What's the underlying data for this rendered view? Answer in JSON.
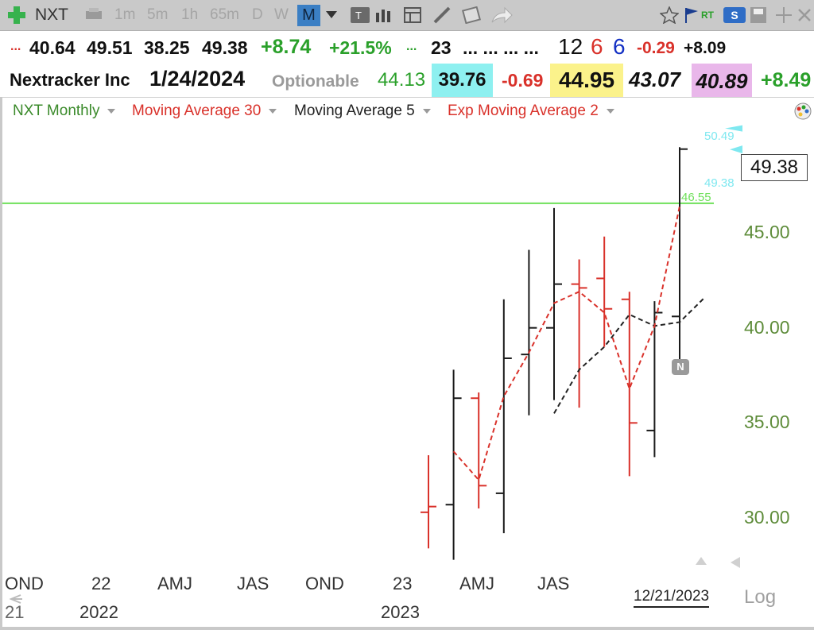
{
  "toolbar": {
    "symbol": "NXT",
    "timeframes": [
      "1m",
      "5m",
      "1h",
      "65m",
      "D",
      "W",
      "M"
    ],
    "active_timeframe": "M",
    "rt_label": "RT",
    "s_label": "S"
  },
  "quote_row1": {
    "dots": "...",
    "open": "40.64",
    "high": "49.51",
    "low": "38.25",
    "close": "49.38",
    "change": "+8.74",
    "change_pct": "+21.5%",
    "dots2": "...",
    "field1": "23",
    "dots3": "... ... ... ...",
    "n1": "12",
    "n2": "6",
    "n3": "6",
    "neg": "-0.29",
    "pos": "+8.09"
  },
  "quote_row2": {
    "name": "Nextracker Inc",
    "date": "1/24/2024",
    "optionable": "Optionable",
    "v1": "44.13",
    "v2": "39.76",
    "v3": "-0.69",
    "v4": "44.95",
    "v5": "43.07",
    "v6": "40.89",
    "v7": "+8.49"
  },
  "studies": {
    "main": "NXT Monthly",
    "ma30": "Moving Average 30",
    "ma5": "Moving Average 5",
    "ema2": "Exp Moving Average 2"
  },
  "chart_tags": {
    "tag_high": "50.49",
    "tag_mid": "49.38",
    "tag_line": "46.55",
    "last_price": "49.38",
    "n_badge": "N"
  },
  "bottom": {
    "date_stamp": "12/21/2023",
    "log_label": "Log"
  },
  "colors": {
    "up": "#1a1a1a",
    "down": "#d9312a",
    "horizontal_line": "#6ee05a",
    "axis_text": "#5e8c3a",
    "positive": "#2aa02a",
    "negative": "#d9312a",
    "cyan_tag": "#7fe8f0"
  },
  "chart_data": {
    "type": "ohlc",
    "ylim": [
      28.5,
      51.5
    ],
    "yticks": [
      "45.00",
      "40.00",
      "35.00",
      "30.00"
    ],
    "yticks_values": [
      45,
      40,
      35,
      30
    ],
    "xticks": [
      "OND",
      "22",
      "AMJ",
      "JAS",
      "OND",
      "23",
      "AMJ",
      "JAS"
    ],
    "xyears": [
      "2022",
      "2023"
    ],
    "xticks_partial": "21",
    "bars": [
      {
        "month": "2023-02",
        "o": 30.3,
        "h": 33.3,
        "l": 28.4,
        "c": 30.6,
        "dir": "down"
      },
      {
        "month": "2023-03",
        "o": 30.7,
        "h": 37.8,
        "l": 27.8,
        "c": 36.3,
        "dir": "up"
      },
      {
        "month": "2023-04",
        "o": 36.3,
        "h": 36.6,
        "l": 30.5,
        "c": 31.7,
        "dir": "down"
      },
      {
        "month": "2023-05",
        "o": 31.3,
        "h": 41.5,
        "l": 29.2,
        "c": 38.4,
        "dir": "up"
      },
      {
        "month": "2023-06",
        "o": 38.6,
        "h": 44.1,
        "l": 35.4,
        "c": 40.0,
        "dir": "up"
      },
      {
        "month": "2023-07",
        "o": 40.0,
        "h": 46.3,
        "l": 36.2,
        "c": 42.3,
        "dir": "up"
      },
      {
        "month": "2023-08",
        "o": 42.3,
        "h": 43.6,
        "l": 35.8,
        "c": 42.1,
        "dir": "down"
      },
      {
        "month": "2023-09",
        "o": 42.6,
        "h": 44.8,
        "l": 39.0,
        "c": 41.0,
        "dir": "down"
      },
      {
        "month": "2023-10",
        "o": 41.5,
        "h": 41.9,
        "l": 32.2,
        "c": 35.0,
        "dir": "down"
      },
      {
        "month": "2023-11",
        "o": 34.6,
        "h": 41.4,
        "l": 33.2,
        "c": 40.8,
        "dir": "up"
      },
      {
        "month": "2023-12",
        "o": 40.6,
        "h": 49.5,
        "l": 38.3,
        "c": 49.4,
        "dir": "up"
      }
    ],
    "ma5": [
      [
        5,
        35.5
      ],
      [
        6,
        37.8
      ],
      [
        7,
        39.0
      ],
      [
        8,
        40.7
      ],
      [
        9,
        40.1
      ],
      [
        10,
        40.3
      ],
      [
        11,
        41.6
      ]
    ],
    "ema2": [
      [
        1,
        33.5
      ],
      [
        2,
        32.0
      ],
      [
        3,
        36.4
      ],
      [
        4,
        38.7
      ],
      [
        5,
        41.3
      ],
      [
        6,
        41.9
      ],
      [
        7,
        40.8
      ],
      [
        8,
        36.8
      ],
      [
        9,
        40.1
      ],
      [
        10,
        46.4
      ]
    ],
    "horizontal_line": 46.55,
    "series": [
      {
        "name": "Moving Average 30",
        "values": []
      },
      {
        "name": "Moving Average 5",
        "values": [
          35.5,
          37.8,
          39.0,
          40.7,
          40.1,
          40.3,
          41.6
        ]
      },
      {
        "name": "Exp Moving Average 2",
        "values": [
          33.5,
          32.0,
          36.4,
          38.7,
          41.3,
          41.9,
          40.8,
          36.8,
          40.1,
          46.4
        ]
      }
    ]
  }
}
